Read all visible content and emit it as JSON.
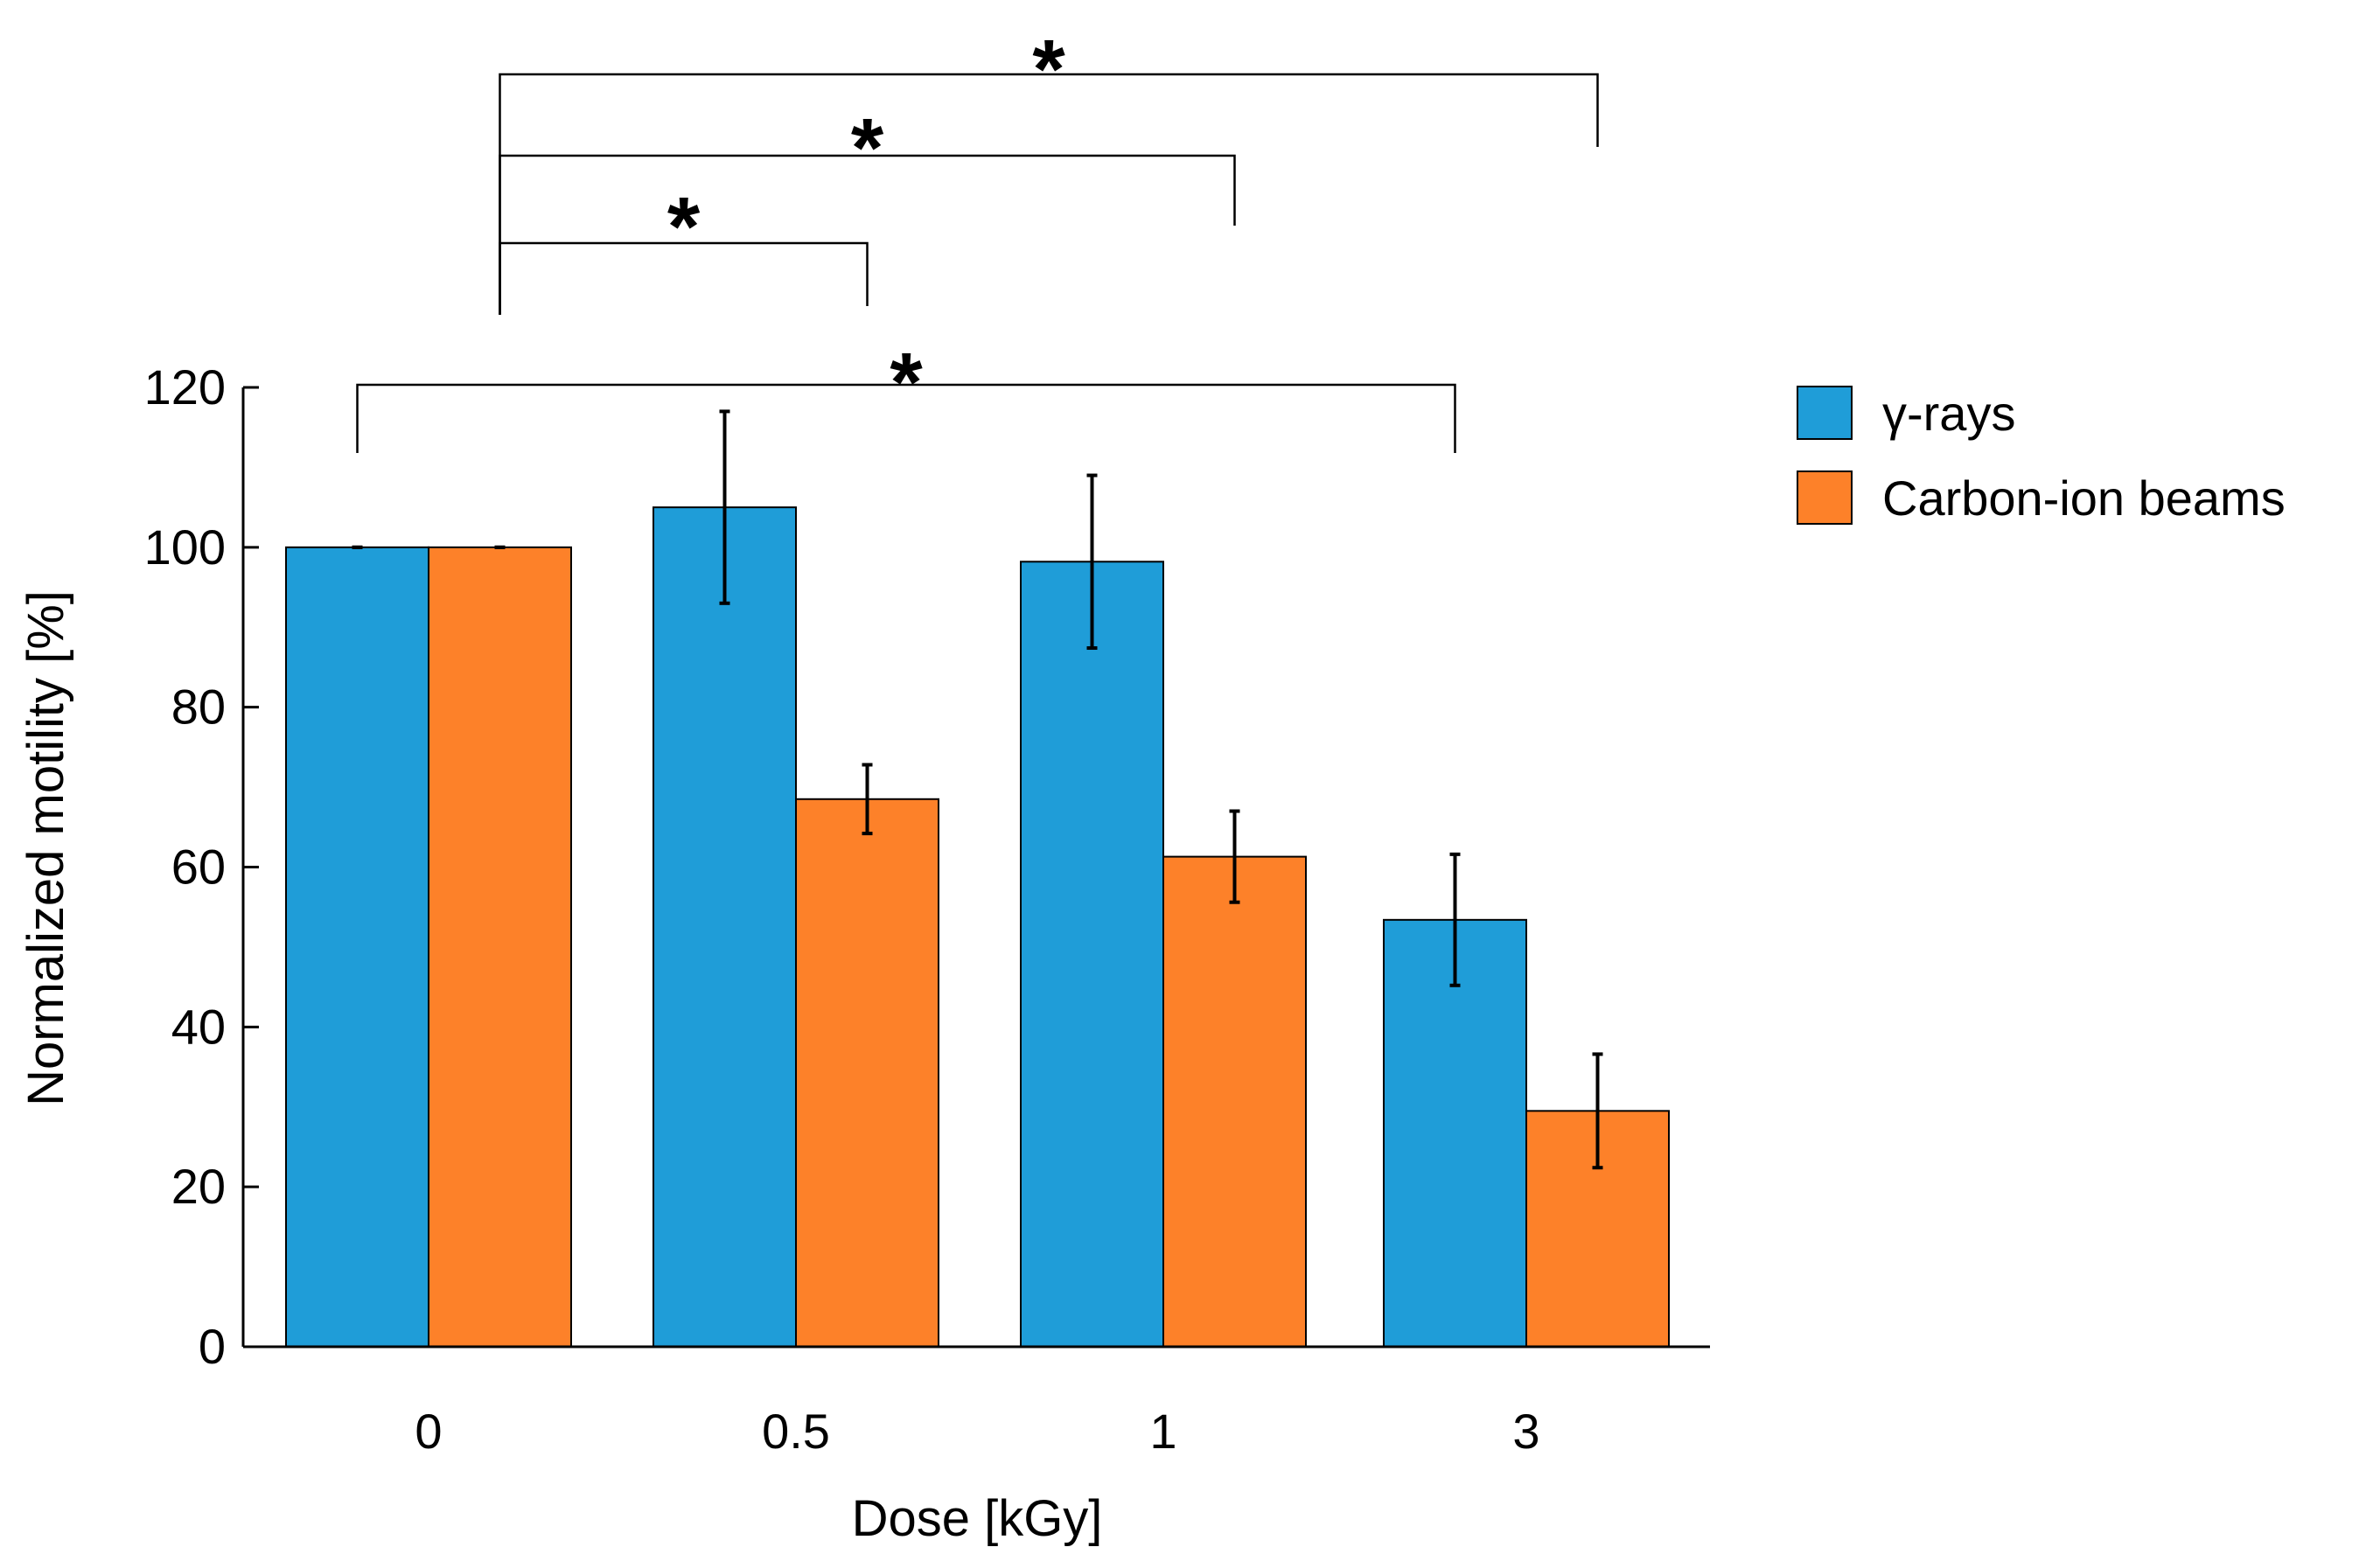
{
  "chart_data": {
    "type": "bar",
    "title": "",
    "xlabel": "Dose [kGy]",
    "ylabel": "Normalized motility [%]",
    "categories": [
      "0",
      "0.5",
      "1",
      "3"
    ],
    "ylim": [
      0,
      120
    ],
    "yticks": [
      0,
      20,
      40,
      60,
      80,
      100,
      120
    ],
    "series": [
      {
        "name": "γ-rays",
        "color": "#1f9dd8",
        "values": [
          100,
          105,
          98.2,
          53.4
        ],
        "errors": [
          0,
          12,
          10.8,
          8.2
        ]
      },
      {
        "name": "Carbon-ion beams",
        "color": "#fd8129",
        "values": [
          100,
          68.5,
          61.3,
          29.5
        ],
        "errors": [
          0,
          4.3,
          5.7,
          7.1
        ]
      }
    ],
    "legend_position": "top-right",
    "significance": [
      {
        "label": "*",
        "from": "Carbon-ion beams @ 0",
        "to": "Carbon-ion beams @ 0.5"
      },
      {
        "label": "*",
        "from": "Carbon-ion beams @ 0",
        "to": "Carbon-ion beams @ 1"
      },
      {
        "label": "*",
        "from": "Carbon-ion beams @ 0",
        "to": "Carbon-ion beams @ 3"
      },
      {
        "label": "*",
        "from": "γ-rays @ 0",
        "to": "γ-rays @ 3"
      }
    ]
  }
}
